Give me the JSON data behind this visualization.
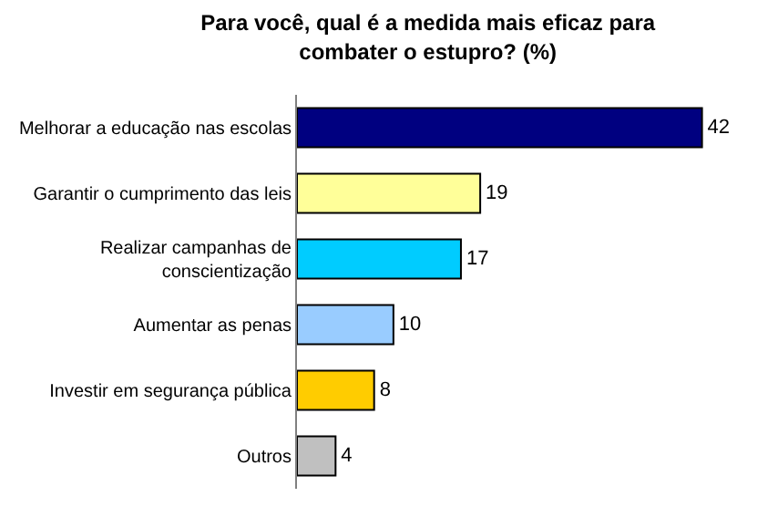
{
  "chart_data": {
    "type": "bar",
    "orientation": "horizontal",
    "title": "Para você, qual é a medida mais eficaz para combater o estupro? (%)",
    "categories": [
      "Melhorar a educação nas escolas",
      "Garantir o cumprimento das leis",
      "Realizar campanhas de conscientização",
      "Aumentar as penas",
      "Investir em segurança pública",
      "Outros"
    ],
    "values": [
      42,
      19,
      17,
      10,
      8,
      4
    ],
    "colors": [
      "#000080",
      "#ffff99",
      "#00ccff",
      "#99ccff",
      "#ffcc00",
      "#c0c0c0"
    ],
    "data_labels": true
  }
}
